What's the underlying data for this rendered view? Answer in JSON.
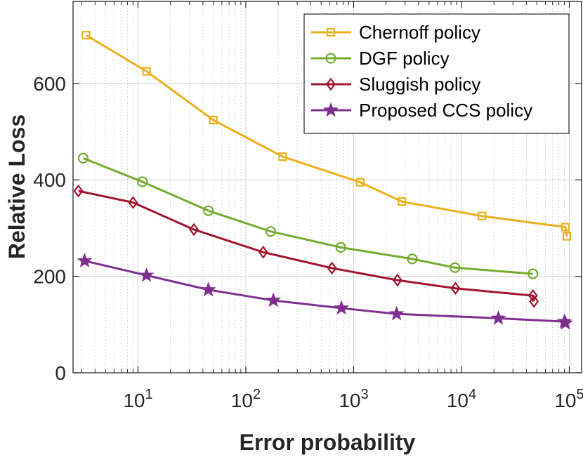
{
  "chart_data": {
    "type": "line",
    "title": "",
    "xlabel": "Error probability",
    "ylabel": "Relative Loss",
    "xscale": "log",
    "xlim": [
      2.5,
      130000
    ],
    "ylim": [
      0,
      770
    ],
    "grid": true,
    "legend_position": "top-right",
    "y_ticks": [
      0,
      200,
      400,
      600
    ],
    "x_ticks": [
      {
        "value": 10,
        "base": "10",
        "exp": "1"
      },
      {
        "value": 100,
        "base": "10",
        "exp": "2"
      },
      {
        "value": 1000,
        "base": "10",
        "exp": "3"
      },
      {
        "value": 10000,
        "base": "10",
        "exp": "4"
      },
      {
        "value": 100000,
        "base": "10",
        "exp": "5"
      }
    ],
    "series": [
      {
        "name": "Chernoff policy",
        "color": "#EDB120",
        "marker": "square",
        "x": [
          3.3,
          12,
          50,
          220,
          1150,
          2800,
          15500,
          92000,
          95000
        ],
        "y": [
          700,
          625,
          524,
          448,
          395,
          355,
          325,
          302,
          283
        ]
      },
      {
        "name": "DGF policy",
        "color": "#77AC30",
        "marker": "circle",
        "x": [
          3.1,
          11,
          45,
          170,
          760,
          3500,
          8700,
          46000
        ],
        "y": [
          445,
          396,
          336,
          293,
          260,
          236,
          218,
          205
        ]
      },
      {
        "name": "Sluggish policy",
        "color": "#A2142F",
        "marker": "diamond",
        "x": [
          2.8,
          9,
          33,
          145,
          630,
          2550,
          8800,
          46000,
          47000
        ],
        "y": [
          377,
          353,
          297,
          250,
          217,
          192,
          175,
          160,
          148
        ]
      },
      {
        "name": "Proposed CCS policy",
        "color": "#7E2F8E",
        "marker": "star",
        "x": [
          3.2,
          12,
          45,
          180,
          770,
          2500,
          22000,
          90000,
          92000
        ],
        "y": [
          232,
          202,
          172,
          150,
          134,
          122,
          113,
          106,
          103
        ]
      }
    ]
  }
}
